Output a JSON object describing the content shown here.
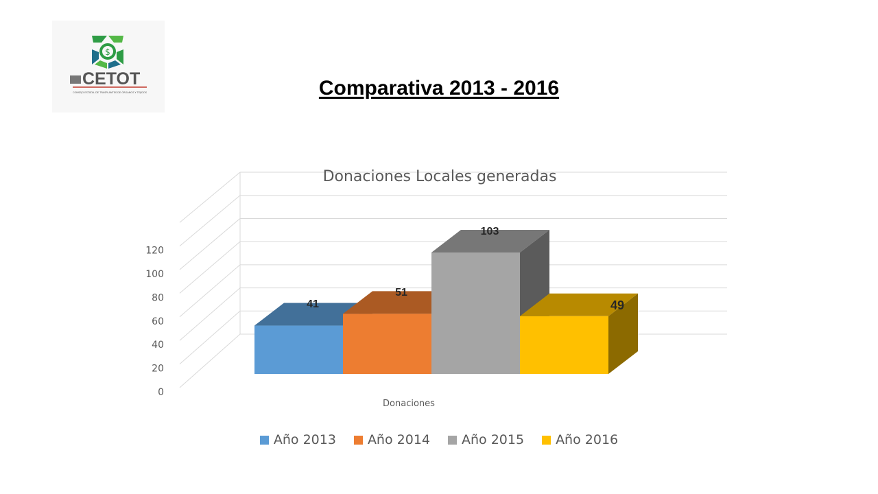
{
  "page": {
    "title": "Comparativa 2013 - 2016"
  },
  "logo": {
    "text": "CETOT",
    "subtext": "CONSEJO ESTATAL DE TRASPLANTES DE ÓRGANOS Y TEJIDOS"
  },
  "chart_data": {
    "type": "bar",
    "style": "3d-clustered-column",
    "title": "Donaciones Locales generadas",
    "xlabel": "Donaciones",
    "ylabel": "",
    "categories": [
      "Donaciones"
    ],
    "series": [
      {
        "name": "Año 2013",
        "values": [
          41
        ],
        "color": "#5b9bd5",
        "label": "41"
      },
      {
        "name": "Año 2014",
        "values": [
          51
        ],
        "color": "#ed7d31",
        "label": "51"
      },
      {
        "name": "Año 2015",
        "values": [
          103
        ],
        "color": "#a5a5a5",
        "label": "103"
      },
      {
        "name": "Año 2016",
        "values": [
          49
        ],
        "color": "#ffc000",
        "label": "49"
      }
    ],
    "ylim": [
      0,
      140
    ],
    "yticks": [
      0,
      20,
      40,
      60,
      80,
      100,
      120
    ],
    "grid": true,
    "legend": "bottom"
  }
}
